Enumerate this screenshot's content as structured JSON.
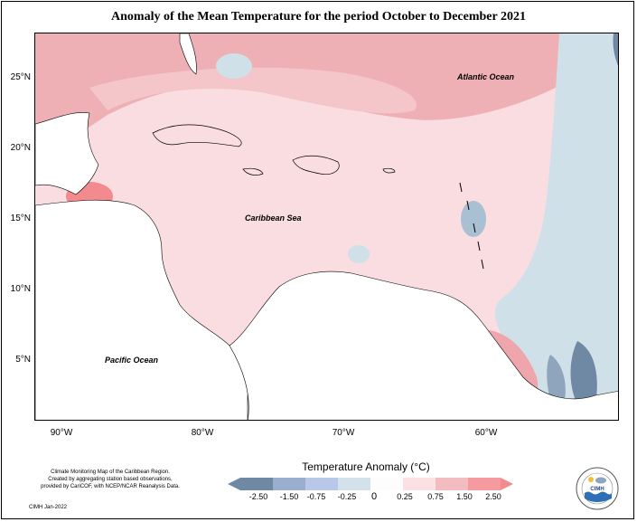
{
  "title": "Anomaly of the Mean Temperature for the period October to December 2021",
  "map": {
    "y_axis_labels": [
      "25°N",
      "20°N",
      "15°N",
      "10°N",
      "5°N"
    ],
    "x_axis_labels": [
      "90°W",
      "80°W",
      "70°W",
      "60°W"
    ],
    "labels": {
      "atlantic": "Atlantic Ocean",
      "caribbean": "Caribbean Sea",
      "pacific": "Pacific Ocean"
    },
    "colors": {
      "ocean_base": "#fadde0",
      "positive_light": "#f7ccd0",
      "positive_medium": "#eea5ab",
      "positive_strong": "#f38a8e",
      "negative_light": "#cfe0e8",
      "negative_medium": "#a9c0d2",
      "negative_strong": "#6f88a4",
      "land": "#ffffff"
    }
  },
  "note": {
    "lines": [
      "Climate Monitoring Map of the Caribbean Region.",
      "Created by aggregating station based observations,",
      "provided by CariCOF, with NCEP/NCAR Reanalysis Data."
    ],
    "credit": "CIMH Jan-2022"
  },
  "legend": {
    "title": "Temperature Anomaly (°C)",
    "ticks": [
      "-2.50",
      "-1.50",
      "-0.75",
      "-0.25",
      "0",
      "0.25",
      "0.75",
      "1.50",
      "2.50"
    ],
    "colors": [
      "#6f88a4",
      "#9aaed0",
      "#b9c8e8",
      "#d3e2ea",
      "#ffffff",
      "#fbe1e3",
      "#f2bcc1",
      "#f59a9e",
      "#f38a8e"
    ]
  },
  "logo": {
    "text": "CIMH"
  }
}
